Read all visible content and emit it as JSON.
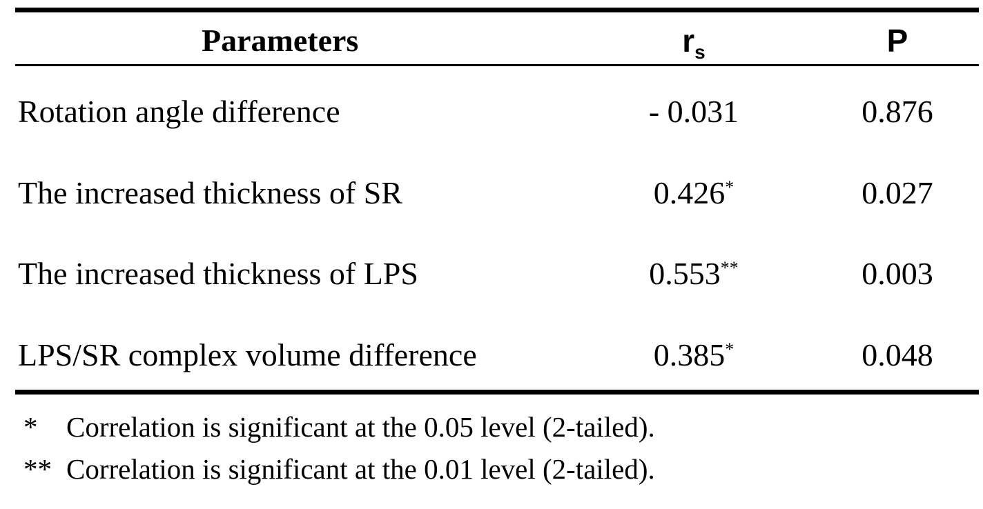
{
  "table": {
    "headers": {
      "parameters": "Parameters",
      "rs": "r",
      "rs_sub": "s",
      "p": "P"
    },
    "rows": [
      {
        "parameter": "Rotation angle difference",
        "rs": "- 0.031",
        "mark": "",
        "p": "0.876"
      },
      {
        "parameter": "The increased thickness of SR",
        "rs": "0.426",
        "mark": "*",
        "p": "0.027"
      },
      {
        "parameter": "The increased thickness of LPS",
        "rs": "0.553",
        "mark": "**",
        "p": "0.003"
      },
      {
        "parameter": "LPS/SR complex volume difference",
        "rs": "0.385",
        "mark": "*",
        "p": "0.048"
      }
    ],
    "footnotes": [
      {
        "mark": "*",
        "text": "Correlation is significant at the 0.05 level (2-tailed)."
      },
      {
        "mark": "**",
        "text": "Correlation is significant at the 0.01 level (2-tailed)."
      }
    ]
  }
}
